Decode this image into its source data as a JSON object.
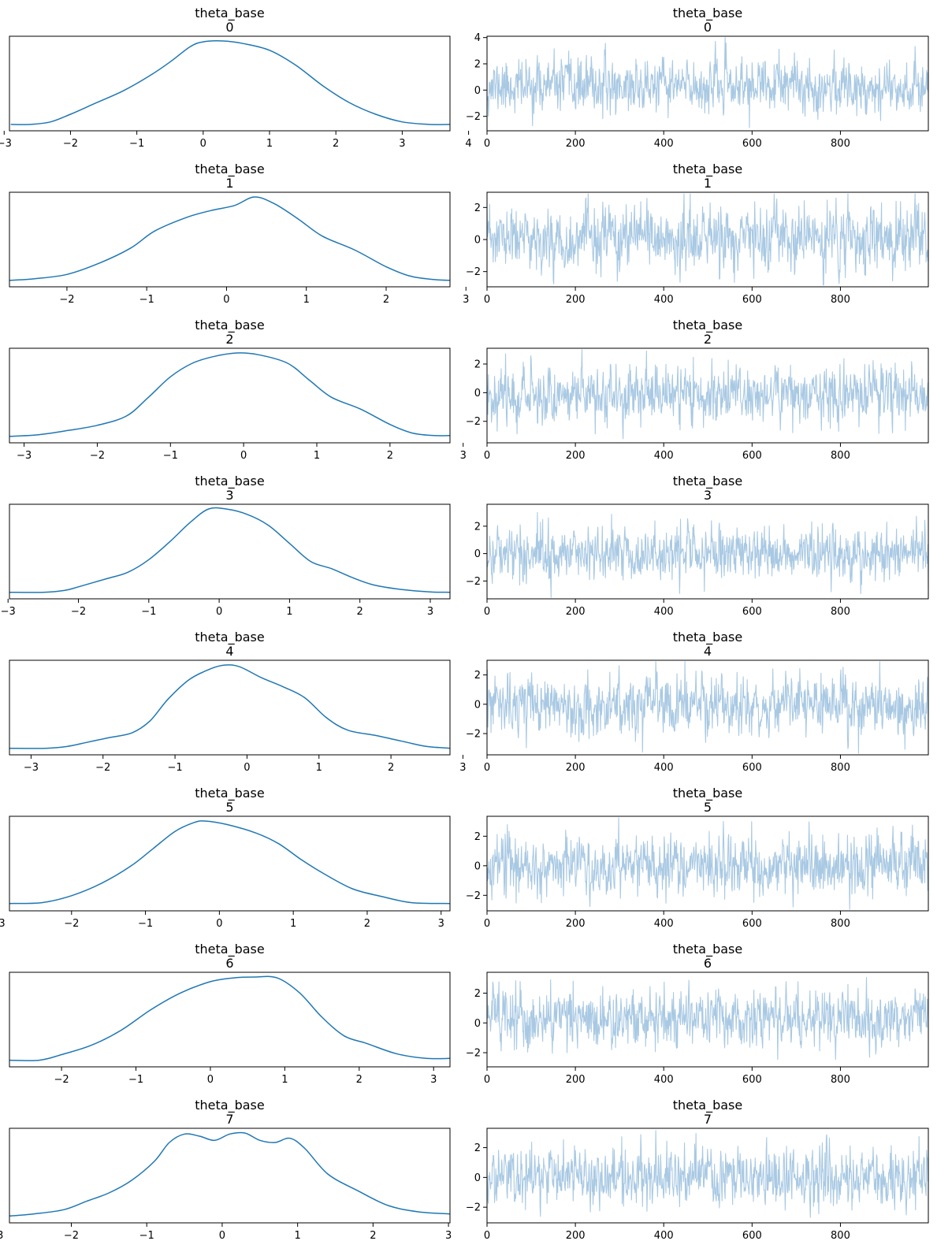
{
  "figure": {
    "colors": {
      "kde": "#1f77b4",
      "trace": "#a9c9e3",
      "axis": "#000000"
    }
  },
  "chart_data": [
    {
      "type": "line",
      "panel": "kde",
      "title": "theta_base",
      "subtitle": "0",
      "xlim": [
        -2.92,
        3.72
      ],
      "xticks": [
        -3,
        -2,
        -1,
        0,
        1,
        2,
        3,
        4
      ],
      "kde_points": [
        [
          -2.9,
          0.01
        ],
        [
          -2.6,
          0.01
        ],
        [
          -2.3,
          0.025
        ],
        [
          -2.0,
          0.07
        ],
        [
          -1.6,
          0.14
        ],
        [
          -1.2,
          0.21
        ],
        [
          -0.8,
          0.3
        ],
        [
          -0.5,
          0.38
        ],
        [
          -0.2,
          0.47
        ],
        [
          0.0,
          0.5
        ],
        [
          0.3,
          0.505
        ],
        [
          0.6,
          0.49
        ],
        [
          1.0,
          0.45
        ],
        [
          1.4,
          0.36
        ],
        [
          1.8,
          0.24
        ],
        [
          2.2,
          0.14
        ],
        [
          2.6,
          0.07
        ],
        [
          3.0,
          0.025
        ],
        [
          3.4,
          0.01
        ],
        [
          3.72,
          0.01
        ]
      ],
      "trace": {
        "n": 1000,
        "xticks": [
          0,
          200,
          400,
          600,
          800
        ],
        "ylim": [
          -3.1,
          4.1
        ],
        "yticks": [
          -2,
          0,
          2,
          4
        ],
        "seed": 11,
        "scale": 0.95,
        "mean": 0.3
      }
    },
    {
      "type": "line",
      "panel": "kde",
      "title": "theta_base",
      "subtitle": "1",
      "xlim": [
        -2.72,
        2.8
      ],
      "xticks": [
        -2,
        -1,
        0,
        1,
        2,
        3
      ],
      "kde_points": [
        [
          -2.72,
          0.01
        ],
        [
          -2.4,
          0.02
        ],
        [
          -2.0,
          0.045
        ],
        [
          -1.6,
          0.11
        ],
        [
          -1.2,
          0.2
        ],
        [
          -0.9,
          0.3
        ],
        [
          -0.5,
          0.38
        ],
        [
          -0.2,
          0.42
        ],
        [
          0.1,
          0.45
        ],
        [
          0.35,
          0.5
        ],
        [
          0.6,
          0.46
        ],
        [
          0.9,
          0.37
        ],
        [
          1.2,
          0.27
        ],
        [
          1.6,
          0.19
        ],
        [
          2.0,
          0.09
        ],
        [
          2.3,
          0.035
        ],
        [
          2.6,
          0.015
        ],
        [
          2.8,
          0.01
        ]
      ],
      "trace": {
        "n": 1000,
        "xticks": [
          0,
          200,
          400,
          600,
          800
        ],
        "ylim": [
          -2.95,
          2.95
        ],
        "yticks": [
          -2,
          0,
          2
        ],
        "seed": 23,
        "scale": 0.95,
        "mean": 0.0
      }
    },
    {
      "type": "line",
      "panel": "kde",
      "title": "theta_base",
      "subtitle": "2",
      "xlim": [
        -3.2,
        2.82
      ],
      "xticks": [
        -3,
        -2,
        -1,
        0,
        1,
        2,
        3
      ],
      "kde_points": [
        [
          -3.2,
          0.01
        ],
        [
          -2.8,
          0.02
        ],
        [
          -2.4,
          0.045
        ],
        [
          -2.0,
          0.075
        ],
        [
          -1.6,
          0.13
        ],
        [
          -1.3,
          0.24
        ],
        [
          -1.0,
          0.36
        ],
        [
          -0.7,
          0.44
        ],
        [
          -0.4,
          0.48
        ],
        [
          -0.1,
          0.5
        ],
        [
          0.2,
          0.49
        ],
        [
          0.6,
          0.44
        ],
        [
          0.9,
          0.34
        ],
        [
          1.2,
          0.24
        ],
        [
          1.6,
          0.17
        ],
        [
          2.0,
          0.08
        ],
        [
          2.3,
          0.03
        ],
        [
          2.6,
          0.015
        ],
        [
          2.82,
          0.015
        ]
      ],
      "trace": {
        "n": 1000,
        "xticks": [
          0,
          200,
          400,
          600,
          800
        ],
        "ylim": [
          -3.5,
          3.1
        ],
        "yticks": [
          -2,
          0,
          2
        ],
        "seed": 37,
        "scale": 0.95,
        "mean": -0.1
      }
    },
    {
      "type": "line",
      "panel": "kde",
      "title": "theta_base",
      "subtitle": "3",
      "xlim": [
        -2.98,
        3.28
      ],
      "xticks": [
        -3,
        -2,
        -1,
        0,
        1,
        2,
        3
      ],
      "kde_points": [
        [
          -2.98,
          0.01
        ],
        [
          -2.5,
          0.01
        ],
        [
          -2.2,
          0.02
        ],
        [
          -2.0,
          0.04
        ],
        [
          -1.6,
          0.085
        ],
        [
          -1.3,
          0.12
        ],
        [
          -1.0,
          0.19
        ],
        [
          -0.7,
          0.29
        ],
        [
          -0.4,
          0.4
        ],
        [
          -0.15,
          0.47
        ],
        [
          0.1,
          0.47
        ],
        [
          0.4,
          0.44
        ],
        [
          0.7,
          0.38
        ],
        [
          1.0,
          0.28
        ],
        [
          1.3,
          0.18
        ],
        [
          1.6,
          0.14
        ],
        [
          1.9,
          0.09
        ],
        [
          2.2,
          0.05
        ],
        [
          2.6,
          0.025
        ],
        [
          3.0,
          0.012
        ],
        [
          3.28,
          0.01
        ]
      ],
      "trace": {
        "n": 1000,
        "xticks": [
          0,
          200,
          400,
          600,
          800
        ],
        "ylim": [
          -3.3,
          3.6
        ],
        "yticks": [
          -2,
          0,
          2
        ],
        "seed": 41,
        "scale": 0.95,
        "mean": 0.05
      }
    },
    {
      "type": "line",
      "panel": "kde",
      "title": "theta_base",
      "subtitle": "4",
      "xlim": [
        -3.3,
        2.82
      ],
      "xticks": [
        -3,
        -2,
        -1,
        0,
        1,
        2,
        3
      ],
      "kde_points": [
        [
          -3.3,
          0.01
        ],
        [
          -2.8,
          0.01
        ],
        [
          -2.5,
          0.02
        ],
        [
          -2.2,
          0.045
        ],
        [
          -1.9,
          0.07
        ],
        [
          -1.6,
          0.095
        ],
        [
          -1.35,
          0.16
        ],
        [
          -1.1,
          0.28
        ],
        [
          -0.8,
          0.39
        ],
        [
          -0.5,
          0.45
        ],
        [
          -0.3,
          0.47
        ],
        [
          -0.1,
          0.46
        ],
        [
          0.2,
          0.4
        ],
        [
          0.5,
          0.35
        ],
        [
          0.8,
          0.29
        ],
        [
          1.1,
          0.18
        ],
        [
          1.4,
          0.11
        ],
        [
          1.8,
          0.08
        ],
        [
          2.2,
          0.045
        ],
        [
          2.5,
          0.02
        ],
        [
          2.82,
          0.01
        ]
      ],
      "trace": {
        "n": 1000,
        "xticks": [
          0,
          200,
          400,
          600,
          800
        ],
        "ylim": [
          -3.45,
          3.0
        ],
        "yticks": [
          -2,
          0,
          2
        ],
        "seed": 53,
        "scale": 0.95,
        "mean": -0.1
      }
    },
    {
      "type": "line",
      "panel": "kde",
      "title": "theta_base",
      "subtitle": "5",
      "xlim": [
        -2.84,
        3.12
      ],
      "xticks": [
        -3,
        -2,
        -1,
        0,
        1,
        2,
        3
      ],
      "kde_points": [
        [
          -2.84,
          0.015
        ],
        [
          -2.4,
          0.02
        ],
        [
          -2.0,
          0.06
        ],
        [
          -1.6,
          0.13
        ],
        [
          -1.2,
          0.23
        ],
        [
          -0.9,
          0.33
        ],
        [
          -0.6,
          0.43
        ],
        [
          -0.35,
          0.48
        ],
        [
          -0.2,
          0.49
        ],
        [
          0.1,
          0.47
        ],
        [
          0.5,
          0.42
        ],
        [
          0.8,
          0.36
        ],
        [
          1.1,
          0.27
        ],
        [
          1.4,
          0.19
        ],
        [
          1.8,
          0.1
        ],
        [
          2.2,
          0.055
        ],
        [
          2.6,
          0.02
        ],
        [
          3.12,
          0.015
        ]
      ],
      "trace": {
        "n": 1000,
        "xticks": [
          0,
          200,
          400,
          600,
          800
        ],
        "ylim": [
          -3.05,
          3.35
        ],
        "yticks": [
          -2,
          0,
          2
        ],
        "seed": 67,
        "scale": 0.95,
        "mean": 0.0
      }
    },
    {
      "type": "line",
      "panel": "kde",
      "title": "theta_base",
      "subtitle": "6",
      "xlim": [
        -2.7,
        3.22
      ],
      "xticks": [
        -2,
        -1,
        0,
        1,
        2,
        3
      ],
      "kde_points": [
        [
          -2.7,
          0.01
        ],
        [
          -2.3,
          0.01
        ],
        [
          -2.0,
          0.04
        ],
        [
          -1.6,
          0.09
        ],
        [
          -1.2,
          0.17
        ],
        [
          -0.8,
          0.28
        ],
        [
          -0.4,
          0.37
        ],
        [
          0.0,
          0.43
        ],
        [
          0.3,
          0.45
        ],
        [
          0.6,
          0.455
        ],
        [
          0.9,
          0.45
        ],
        [
          1.2,
          0.37
        ],
        [
          1.5,
          0.24
        ],
        [
          1.8,
          0.14
        ],
        [
          2.1,
          0.1
        ],
        [
          2.5,
          0.045
        ],
        [
          2.9,
          0.02
        ],
        [
          3.22,
          0.02
        ]
      ],
      "trace": {
        "n": 1000,
        "xticks": [
          0,
          200,
          400,
          600,
          800
        ],
        "ylim": [
          -2.95,
          3.4
        ],
        "yticks": [
          -2,
          0,
          2
        ],
        "seed": 79,
        "scale": 0.95,
        "mean": 0.3
      }
    },
    {
      "type": "line",
      "panel": "kde",
      "title": "theta_base",
      "subtitle": "7",
      "xlim": [
        -2.82,
        3.02
      ],
      "xticks": [
        -3,
        -2,
        -1,
        0,
        1,
        2,
        3
      ],
      "kde_points": [
        [
          -2.82,
          0.01
        ],
        [
          -2.5,
          0.02
        ],
        [
          -2.1,
          0.04
        ],
        [
          -1.8,
          0.08
        ],
        [
          -1.5,
          0.12
        ],
        [
          -1.2,
          0.18
        ],
        [
          -0.9,
          0.27
        ],
        [
          -0.7,
          0.36
        ],
        [
          -0.5,
          0.4
        ],
        [
          -0.3,
          0.39
        ],
        [
          -0.1,
          0.37
        ],
        [
          0.1,
          0.4
        ],
        [
          0.3,
          0.405
        ],
        [
          0.5,
          0.37
        ],
        [
          0.7,
          0.36
        ],
        [
          0.9,
          0.38
        ],
        [
          1.1,
          0.33
        ],
        [
          1.4,
          0.21
        ],
        [
          1.8,
          0.13
        ],
        [
          2.2,
          0.06
        ],
        [
          2.6,
          0.03
        ],
        [
          3.02,
          0.02
        ]
      ],
      "trace": {
        "n": 1000,
        "xticks": [
          0,
          200,
          400,
          600,
          800
        ],
        "ylim": [
          -3.05,
          3.3
        ],
        "yticks": [
          -2,
          0,
          2
        ],
        "seed": 97,
        "scale": 0.95,
        "mean": 0.0
      }
    }
  ]
}
